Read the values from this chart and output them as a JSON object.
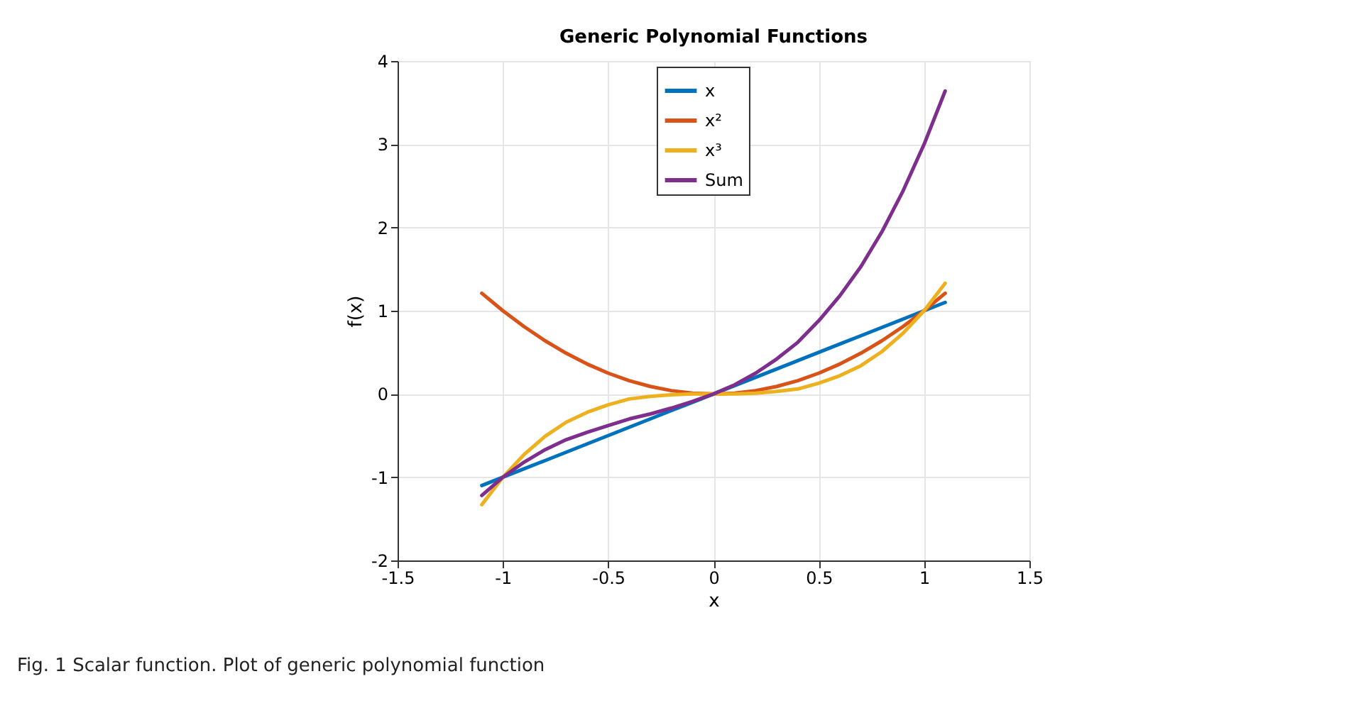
{
  "chart_data": {
    "type": "line",
    "title": "Generic Polynomial Functions",
    "xlabel": "x",
    "ylabel": "f(x)",
    "x": [
      -1.1,
      -1.0,
      -0.9,
      -0.8,
      -0.7,
      -0.6,
      -0.5,
      -0.4,
      -0.3,
      -0.2,
      -0.1,
      0,
      0.1,
      0.2,
      0.3,
      0.4,
      0.5,
      0.6,
      0.7,
      0.8,
      0.9,
      1.0,
      1.1
    ],
    "series": [
      {
        "name": "x",
        "color": "#0072bd",
        "values": [
          -1.1,
          -1.0,
          -0.9,
          -0.8,
          -0.7,
          -0.6,
          -0.5,
          -0.4,
          -0.3,
          -0.2,
          -0.1,
          0,
          0.1,
          0.2,
          0.3,
          0.4,
          0.5,
          0.6,
          0.7,
          0.8,
          0.9,
          1.0,
          1.1
        ]
      },
      {
        "name": "x²",
        "color": "#d95319",
        "values": [
          1.21,
          1.0,
          0.81,
          0.64,
          0.49,
          0.36,
          0.25,
          0.16,
          0.09,
          0.04,
          0.01,
          0,
          0.01,
          0.04,
          0.09,
          0.16,
          0.25,
          0.36,
          0.49,
          0.64,
          0.81,
          1.0,
          1.21
        ]
      },
      {
        "name": "x³",
        "color": "#edb120",
        "values": [
          -1.33,
          -1.0,
          -0.73,
          -0.51,
          -0.34,
          -0.22,
          -0.13,
          -0.06,
          -0.03,
          -0.01,
          0,
          0,
          0,
          0.01,
          0.03,
          0.06,
          0.13,
          0.22,
          0.34,
          0.51,
          0.73,
          1.0,
          1.33
        ]
      },
      {
        "name": "Sum",
        "color": "#7e2f8e",
        "values": [
          -1.22,
          -1.0,
          -0.82,
          -0.67,
          -0.55,
          -0.46,
          -0.38,
          -0.3,
          -0.24,
          -0.17,
          -0.09,
          0,
          0.11,
          0.25,
          0.42,
          0.62,
          0.88,
          1.18,
          1.53,
          1.95,
          2.44,
          3.0,
          3.64
        ]
      }
    ],
    "xlim": [
      -1.5,
      1.5
    ],
    "xticks": [
      -1.5,
      -1,
      -0.5,
      0,
      0.5,
      1,
      1.5
    ],
    "ylim": [
      -2,
      4
    ],
    "yticks": [
      -2,
      -1,
      0,
      1,
      2,
      3,
      4
    ],
    "grid": true,
    "legend": "top",
    "marker": "none",
    "line_style": "solid",
    "annotations": [
      "Fig. 1 Scalar function. Plot of generic polynomial function"
    ]
  }
}
